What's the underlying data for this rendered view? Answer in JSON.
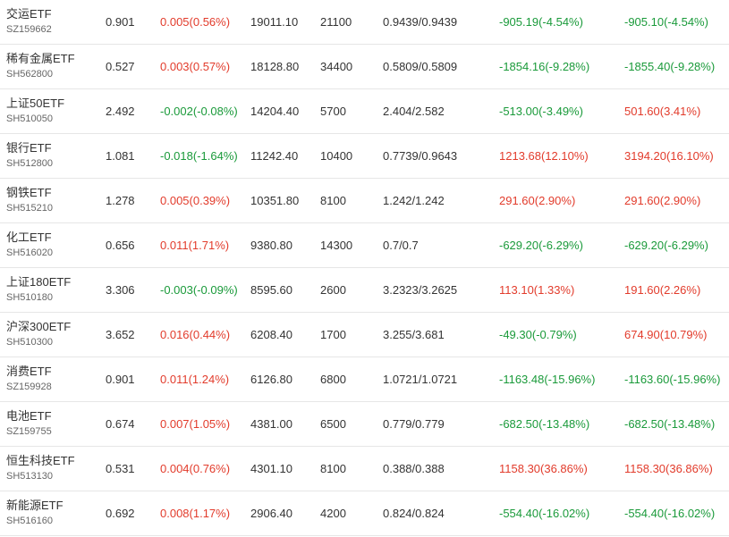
{
  "rows": [
    {
      "name": "交运ETF",
      "code": "SZ159662",
      "price": "0.901",
      "change": "0.005(0.56%)",
      "change_dir": "up",
      "amount": "19011.10",
      "volume": "21100",
      "cost": "0.9439/0.9439",
      "pl1": "-905.19(-4.54%)",
      "pl1_dir": "down",
      "pl2": "-905.10(-4.54%)",
      "pl2_dir": "down"
    },
    {
      "name": "稀有金属ETF",
      "code": "SH562800",
      "price": "0.527",
      "change": "0.003(0.57%)",
      "change_dir": "up",
      "amount": "18128.80",
      "volume": "34400",
      "cost": "0.5809/0.5809",
      "pl1": "-1854.16(-9.28%)",
      "pl1_dir": "down",
      "pl2": "-1855.40(-9.28%)",
      "pl2_dir": "down"
    },
    {
      "name": "上证50ETF",
      "code": "SH510050",
      "price": "2.492",
      "change": "-0.002(-0.08%)",
      "change_dir": "down",
      "amount": "14204.40",
      "volume": "5700",
      "cost": "2.404/2.582",
      "pl1": "-513.00(-3.49%)",
      "pl1_dir": "down",
      "pl2": "501.60(3.41%)",
      "pl2_dir": "up"
    },
    {
      "name": "银行ETF",
      "code": "SH512800",
      "price": "1.081",
      "change": "-0.018(-1.64%)",
      "change_dir": "down",
      "amount": "11242.40",
      "volume": "10400",
      "cost": "0.7739/0.9643",
      "pl1": "1213.68(12.10%)",
      "pl1_dir": "up",
      "pl2": "3194.20(16.10%)",
      "pl2_dir": "up"
    },
    {
      "name": "钢铁ETF",
      "code": "SH515210",
      "price": "1.278",
      "change": "0.005(0.39%)",
      "change_dir": "up",
      "amount": "10351.80",
      "volume": "8100",
      "cost": "1.242/1.242",
      "pl1": "291.60(2.90%)",
      "pl1_dir": "up",
      "pl2": "291.60(2.90%)",
      "pl2_dir": "up"
    },
    {
      "name": "化工ETF",
      "code": "SH516020",
      "price": "0.656",
      "change": "0.011(1.71%)",
      "change_dir": "up",
      "amount": "9380.80",
      "volume": "14300",
      "cost": "0.7/0.7",
      "pl1": "-629.20(-6.29%)",
      "pl1_dir": "down",
      "pl2": "-629.20(-6.29%)",
      "pl2_dir": "down"
    },
    {
      "name": "上证180ETF",
      "code": "SH510180",
      "price": "3.306",
      "change": "-0.003(-0.09%)",
      "change_dir": "down",
      "amount": "8595.60",
      "volume": "2600",
      "cost": "3.2323/3.2625",
      "pl1": "113.10(1.33%)",
      "pl1_dir": "up",
      "pl2": "191.60(2.26%)",
      "pl2_dir": "up"
    },
    {
      "name": "沪深300ETF",
      "code": "SH510300",
      "price": "3.652",
      "change": "0.016(0.44%)",
      "change_dir": "up",
      "amount": "6208.40",
      "volume": "1700",
      "cost": "3.255/3.681",
      "pl1": "-49.30(-0.79%)",
      "pl1_dir": "down",
      "pl2": "674.90(10.79%)",
      "pl2_dir": "up"
    },
    {
      "name": "消费ETF",
      "code": "SZ159928",
      "price": "0.901",
      "change": "0.011(1.24%)",
      "change_dir": "up",
      "amount": "6126.80",
      "volume": "6800",
      "cost": "1.0721/1.0721",
      "pl1": "-1163.48(-15.96%)",
      "pl1_dir": "down",
      "pl2": "-1163.60(-15.96%)",
      "pl2_dir": "down"
    },
    {
      "name": "电池ETF",
      "code": "SZ159755",
      "price": "0.674",
      "change": "0.007(1.05%)",
      "change_dir": "up",
      "amount": "4381.00",
      "volume": "6500",
      "cost": "0.779/0.779",
      "pl1": "-682.50(-13.48%)",
      "pl1_dir": "down",
      "pl2": "-682.50(-13.48%)",
      "pl2_dir": "down"
    },
    {
      "name": "恒生科技ETF",
      "code": "SH513130",
      "price": "0.531",
      "change": "0.004(0.76%)",
      "change_dir": "up",
      "amount": "4301.10",
      "volume": "8100",
      "cost": "0.388/0.388",
      "pl1": "1158.30(36.86%)",
      "pl1_dir": "up",
      "pl2": "1158.30(36.86%)",
      "pl2_dir": "up"
    },
    {
      "name": "新能源ETF",
      "code": "SH516160",
      "price": "0.692",
      "change": "0.008(1.17%)",
      "change_dir": "up",
      "amount": "2906.40",
      "volume": "4200",
      "cost": "0.824/0.824",
      "pl1": "-554.40(-16.02%)",
      "pl1_dir": "down",
      "pl2": "-554.40(-16.02%)",
      "pl2_dir": "down"
    }
  ],
  "colors": {
    "up": "#e23b2b",
    "down": "#1a9a3a",
    "text": "#333333",
    "code": "#666666",
    "divider": "#e6e6e6"
  }
}
